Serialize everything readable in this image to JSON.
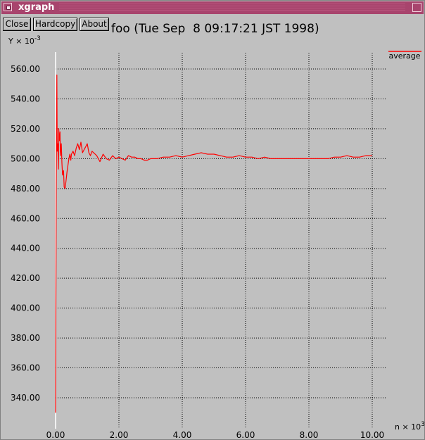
{
  "window": {
    "title": "xgraph",
    "buttons": {
      "close": "Close",
      "hardcopy": "Hardcopy",
      "about": "About"
    }
  },
  "colors": {
    "background": "#c0c0c0",
    "series": "#ff0000",
    "grid": "#000000",
    "axis": "#ffffff",
    "titlebar": "#a8446d"
  },
  "chart_data": {
    "type": "line",
    "title": "foo (Tue Sep  8 09:17:21 JST 1998)",
    "y_label": "Y",
    "y_exponent": "-3",
    "x_label": "n",
    "x_exponent": "3",
    "xlim": [
      0,
      10.5
    ],
    "ylim": [
      327,
      578
    ],
    "x_ticks": [
      0,
      2,
      4,
      6,
      8,
      10
    ],
    "x_tick_labels": [
      "0.00",
      "2.00",
      "4.00",
      "6.00",
      "8.00",
      "10.00"
    ],
    "y_ticks": [
      340,
      360,
      380,
      400,
      420,
      440,
      460,
      480,
      500,
      520,
      540,
      560
    ],
    "y_tick_labels": [
      "340.00",
      "360.00",
      "380.00",
      "400.00",
      "420.00",
      "440.00",
      "460.00",
      "480.00",
      "500.00",
      "520.00",
      "540.00",
      "560.00"
    ],
    "grid": true,
    "grid_style": "dotted",
    "legend_position": "top-right",
    "series": [
      {
        "name": "average",
        "color": "#ff0000",
        "x": [
          0.0,
          0.02,
          0.04,
          0.05,
          0.07,
          0.09,
          0.1,
          0.12,
          0.14,
          0.15,
          0.18,
          0.2,
          0.22,
          0.25,
          0.27,
          0.3,
          0.33,
          0.36,
          0.4,
          0.42,
          0.45,
          0.48,
          0.5,
          0.55,
          0.6,
          0.65,
          0.7,
          0.75,
          0.8,
          0.85,
          0.9,
          0.95,
          1.0,
          1.05,
          1.1,
          1.15,
          1.2,
          1.3,
          1.4,
          1.5,
          1.6,
          1.7,
          1.8,
          1.9,
          2.0,
          2.1,
          2.2,
          2.3,
          2.4,
          2.5,
          2.6,
          2.7,
          2.8,
          2.9,
          3.0,
          3.2,
          3.4,
          3.6,
          3.8,
          4.0,
          4.2,
          4.4,
          4.6,
          4.8,
          5.0,
          5.2,
          5.4,
          5.6,
          5.8,
          6.0,
          6.2,
          6.4,
          6.6,
          6.8,
          7.0,
          7.2,
          7.4,
          7.6,
          7.8,
          8.0,
          8.2,
          8.4,
          8.6,
          8.8,
          9.0,
          9.2,
          9.4,
          9.6,
          9.8,
          10.0
        ],
        "y": [
          330,
          482,
          556,
          505,
          510,
          493,
          520,
          512,
          518,
          502,
          510,
          497,
          489,
          492,
          481,
          480,
          485,
          491,
          497,
          500,
          503,
          499,
          503,
          505,
          502,
          507,
          510,
          506,
          511,
          504,
          506,
          508,
          510,
          504,
          502,
          505,
          504,
          502,
          498,
          503,
          500,
          499,
          502,
          500,
          501,
          500,
          499,
          502,
          501,
          501,
          500,
          500,
          499,
          499,
          500,
          500,
          501,
          501,
          502,
          501,
          502,
          503,
          504,
          503,
          503,
          502,
          501,
          501,
          502,
          501,
          501,
          500,
          501,
          500,
          500,
          500,
          500,
          500,
          500,
          500,
          500,
          500,
          500,
          501,
          501,
          502,
          501,
          501,
          502,
          502
        ]
      }
    ]
  }
}
